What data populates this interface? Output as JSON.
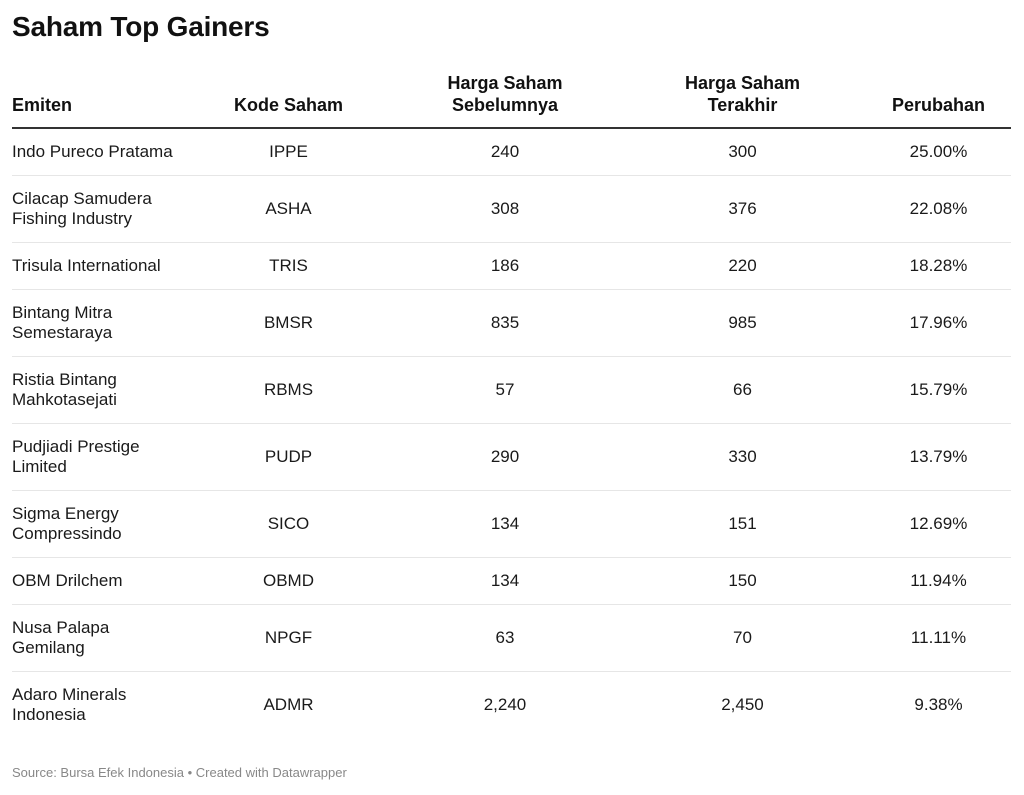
{
  "title": "Saham Top Gainers",
  "columns": {
    "emiten": "Emiten",
    "kode": "Kode Saham",
    "sebelumnya_l1": "Harga Saham",
    "sebelumnya_l2": "Sebelumnya",
    "terakhir_l1": "Harga Saham",
    "terakhir_l2": "Terakhir",
    "perubahan": "Perubahan"
  },
  "rows": [
    {
      "emiten_l1": "Indo Pureco Pratama",
      "emiten_l2": "",
      "kode": "IPPE",
      "sebelumnya": "240",
      "terakhir": "300",
      "perubahan": "25.00%"
    },
    {
      "emiten_l1": "Cilacap Samudera",
      "emiten_l2": "Fishing Industry",
      "kode": "ASHA",
      "sebelumnya": "308",
      "terakhir": "376",
      "perubahan": "22.08%"
    },
    {
      "emiten_l1": "Trisula International",
      "emiten_l2": "",
      "kode": "TRIS",
      "sebelumnya": "186",
      "terakhir": "220",
      "perubahan": "18.28%"
    },
    {
      "emiten_l1": "Bintang Mitra",
      "emiten_l2": "Semestaraya",
      "kode": "BMSR",
      "sebelumnya": "835",
      "terakhir": "985",
      "perubahan": "17.96%"
    },
    {
      "emiten_l1": "Ristia Bintang",
      "emiten_l2": "Mahkotasejati",
      "kode": "RBMS",
      "sebelumnya": "57",
      "terakhir": "66",
      "perubahan": "15.79%"
    },
    {
      "emiten_l1": "Pudjiadi Prestige",
      "emiten_l2": "Limited",
      "kode": "PUDP",
      "sebelumnya": "290",
      "terakhir": "330",
      "perubahan": "13.79%"
    },
    {
      "emiten_l1": "Sigma Energy",
      "emiten_l2": "Compressindo",
      "kode": "SICO",
      "sebelumnya": "134",
      "terakhir": "151",
      "perubahan": "12.69%"
    },
    {
      "emiten_l1": "OBM Drilchem",
      "emiten_l2": "",
      "kode": "OBMD",
      "sebelumnya": "134",
      "terakhir": "150",
      "perubahan": "11.94%"
    },
    {
      "emiten_l1": "Nusa Palapa",
      "emiten_l2": "Gemilang",
      "kode": "NPGF",
      "sebelumnya": "63",
      "terakhir": "70",
      "perubahan": "11.11%"
    },
    {
      "emiten_l1": "Adaro Minerals",
      "emiten_l2": "Indonesia",
      "kode": "ADMR",
      "sebelumnya": "2,240",
      "terakhir": "2,450",
      "perubahan": "9.38%"
    }
  ],
  "footer": "Source: Bursa Efek Indonesia • Created with Datawrapper",
  "chart_data": {
    "type": "table",
    "title": "Saham Top Gainers",
    "headers": [
      "Emiten",
      "Kode Saham",
      "Harga Saham Sebelumnya",
      "Harga Saham Terakhir",
      "Perubahan"
    ],
    "rows": [
      [
        "Indo Pureco Pratama",
        "IPPE",
        240,
        300,
        "25.00%"
      ],
      [
        "Cilacap Samudera Fishing Industry",
        "ASHA",
        308,
        376,
        "22.08%"
      ],
      [
        "Trisula International",
        "TRIS",
        186,
        220,
        "18.28%"
      ],
      [
        "Bintang Mitra Semestaraya",
        "BMSR",
        835,
        985,
        "17.96%"
      ],
      [
        "Ristia Bintang Mahkotasejati",
        "RBMS",
        57,
        66,
        "15.79%"
      ],
      [
        "Pudjiadi Prestige Limited",
        "PUDP",
        290,
        330,
        "13.79%"
      ],
      [
        "Sigma Energy Compressindo",
        "SICO",
        134,
        151,
        "12.69%"
      ],
      [
        "OBM Drilchem",
        "OBMD",
        134,
        150,
        "11.94%"
      ],
      [
        "Nusa Palapa Gemilang",
        "NPGF",
        63,
        70,
        "11.11%"
      ],
      [
        "Adaro Minerals Indonesia",
        "ADMR",
        2240,
        2450,
        "9.38%"
      ]
    ],
    "source": "Source: Bursa Efek Indonesia • Created with Datawrapper"
  }
}
